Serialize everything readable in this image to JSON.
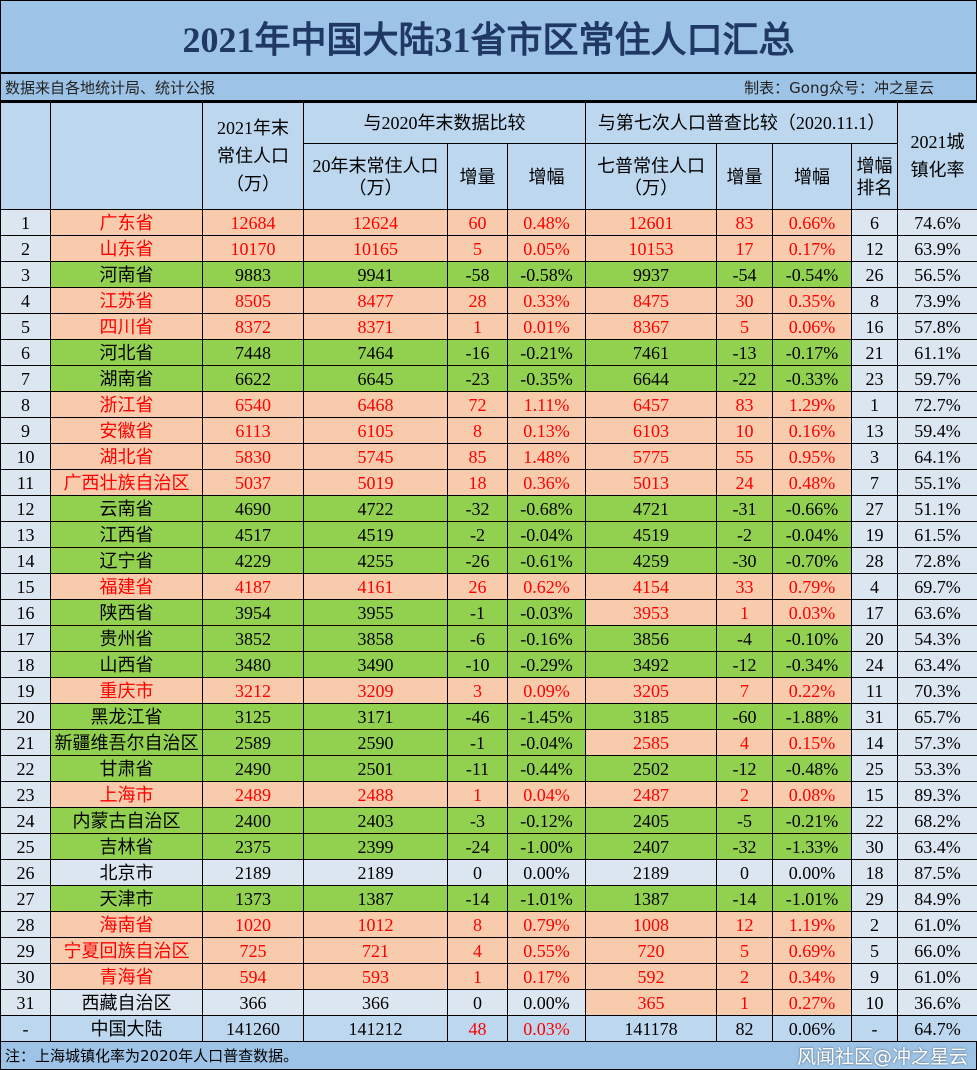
{
  "title": "2021年中国大陆31省市区常住人口汇总",
  "source": "数据来自各地统计局、统计公报",
  "author": "制表：Gong众号：冲之星云",
  "header": {
    "pop2021": "2021年末常住人口（万）",
    "cmp2020": "与2020年末数据比较",
    "pop2020": "20年末常住人口（万）",
    "inc": "增量",
    "pct": "增幅",
    "cmpCensus": "与第七次人口普查比较（2020.11.1）",
    "census": "七普常住人口（万）",
    "inc2": "增量",
    "pct2": "增幅",
    "rank": "增幅排名",
    "urban": "2021城镇化率"
  },
  "colors": {
    "positive_bg": "#f8cbad",
    "positive_text": "#ff0000",
    "negative_bg": "#92d050",
    "neutral_bg": "#dce6f1"
  },
  "rows": [
    [
      "1",
      "广东省",
      "12684",
      "12624",
      "60",
      "0.48%",
      "12601",
      "83",
      "0.66%",
      "6",
      "74.6%",
      "p",
      "p"
    ],
    [
      "2",
      "山东省",
      "10170",
      "10165",
      "5",
      "0.05%",
      "10153",
      "17",
      "0.17%",
      "12",
      "63.9%",
      "p",
      "p"
    ],
    [
      "3",
      "河南省",
      "9883",
      "9941",
      "-58",
      "-0.58%",
      "9937",
      "-54",
      "-0.54%",
      "26",
      "56.5%",
      "n",
      "n"
    ],
    [
      "4",
      "江苏省",
      "8505",
      "8477",
      "28",
      "0.33%",
      "8475",
      "30",
      "0.35%",
      "8",
      "73.9%",
      "p",
      "p"
    ],
    [
      "5",
      "四川省",
      "8372",
      "8371",
      "1",
      "0.01%",
      "8367",
      "5",
      "0.06%",
      "16",
      "57.8%",
      "p",
      "p"
    ],
    [
      "6",
      "河北省",
      "7448",
      "7464",
      "-16",
      "-0.21%",
      "7461",
      "-13",
      "-0.17%",
      "21",
      "61.1%",
      "n",
      "n"
    ],
    [
      "7",
      "湖南省",
      "6622",
      "6645",
      "-23",
      "-0.35%",
      "6644",
      "-22",
      "-0.33%",
      "23",
      "59.7%",
      "n",
      "n"
    ],
    [
      "8",
      "浙江省",
      "6540",
      "6468",
      "72",
      "1.11%",
      "6457",
      "83",
      "1.29%",
      "1",
      "72.7%",
      "p",
      "p"
    ],
    [
      "9",
      "安徽省",
      "6113",
      "6105",
      "8",
      "0.13%",
      "6103",
      "10",
      "0.16%",
      "13",
      "59.4%",
      "p",
      "p"
    ],
    [
      "10",
      "湖北省",
      "5830",
      "5745",
      "85",
      "1.48%",
      "5775",
      "55",
      "0.95%",
      "3",
      "64.1%",
      "p",
      "p"
    ],
    [
      "11",
      "广西壮族自治区",
      "5037",
      "5019",
      "18",
      "0.36%",
      "5013",
      "24",
      "0.48%",
      "7",
      "55.1%",
      "p",
      "p"
    ],
    [
      "12",
      "云南省",
      "4690",
      "4722",
      "-32",
      "-0.68%",
      "4721",
      "-31",
      "-0.66%",
      "27",
      "51.1%",
      "n",
      "n"
    ],
    [
      "13",
      "江西省",
      "4517",
      "4519",
      "-2",
      "-0.04%",
      "4519",
      "-2",
      "-0.04%",
      "19",
      "61.5%",
      "n",
      "n"
    ],
    [
      "14",
      "辽宁省",
      "4229",
      "4255",
      "-26",
      "-0.61%",
      "4259",
      "-30",
      "-0.70%",
      "28",
      "72.8%",
      "n",
      "n"
    ],
    [
      "15",
      "福建省",
      "4187",
      "4161",
      "26",
      "0.62%",
      "4154",
      "33",
      "0.79%",
      "4",
      "69.7%",
      "p",
      "p"
    ],
    [
      "16",
      "陕西省",
      "3954",
      "3955",
      "-1",
      "-0.03%",
      "3953",
      "1",
      "0.03%",
      "17",
      "63.6%",
      "n",
      "p"
    ],
    [
      "17",
      "贵州省",
      "3852",
      "3858",
      "-6",
      "-0.16%",
      "3856",
      "-4",
      "-0.10%",
      "20",
      "54.3%",
      "n",
      "n"
    ],
    [
      "18",
      "山西省",
      "3480",
      "3490",
      "-10",
      "-0.29%",
      "3492",
      "-12",
      "-0.34%",
      "24",
      "63.4%",
      "n",
      "n"
    ],
    [
      "19",
      "重庆市",
      "3212",
      "3209",
      "3",
      "0.09%",
      "3205",
      "7",
      "0.22%",
      "11",
      "70.3%",
      "p",
      "p"
    ],
    [
      "20",
      "黑龙江省",
      "3125",
      "3171",
      "-46",
      "-1.45%",
      "3185",
      "-60",
      "-1.88%",
      "31",
      "65.7%",
      "n",
      "n"
    ],
    [
      "21",
      "新疆维吾尔自治区",
      "2589",
      "2590",
      "-1",
      "-0.04%",
      "2585",
      "4",
      "0.15%",
      "14",
      "57.3%",
      "n",
      "p"
    ],
    [
      "22",
      "甘肃省",
      "2490",
      "2501",
      "-11",
      "-0.44%",
      "2502",
      "-12",
      "-0.48%",
      "25",
      "53.3%",
      "n",
      "n"
    ],
    [
      "23",
      "上海市",
      "2489",
      "2488",
      "1",
      "0.04%",
      "2487",
      "2",
      "0.08%",
      "15",
      "89.3%",
      "p",
      "p"
    ],
    [
      "24",
      "内蒙古自治区",
      "2400",
      "2403",
      "-3",
      "-0.12%",
      "2405",
      "-5",
      "-0.21%",
      "22",
      "68.2%",
      "n",
      "n"
    ],
    [
      "25",
      "吉林省",
      "2375",
      "2399",
      "-24",
      "-1.00%",
      "2407",
      "-32",
      "-1.33%",
      "30",
      "63.4%",
      "n",
      "n"
    ],
    [
      "26",
      "北京市",
      "2189",
      "2189",
      "0",
      "0.00%",
      "2189",
      "0",
      "0.00%",
      "18",
      "87.5%",
      "z",
      "z"
    ],
    [
      "27",
      "天津市",
      "1373",
      "1387",
      "-14",
      "-1.01%",
      "1387",
      "-14",
      "-1.01%",
      "29",
      "84.9%",
      "n",
      "n"
    ],
    [
      "28",
      "海南省",
      "1020",
      "1012",
      "8",
      "0.79%",
      "1008",
      "12",
      "1.19%",
      "2",
      "61.0%",
      "p",
      "p"
    ],
    [
      "29",
      "宁夏回族自治区",
      "725",
      "721",
      "4",
      "0.55%",
      "720",
      "5",
      "0.69%",
      "5",
      "66.0%",
      "p",
      "p"
    ],
    [
      "30",
      "青海省",
      "594",
      "593",
      "1",
      "0.17%",
      "592",
      "2",
      "0.34%",
      "9",
      "61.0%",
      "p",
      "p"
    ],
    [
      "31",
      "西藏自治区",
      "366",
      "366",
      "0",
      "0.00%",
      "365",
      "1",
      "0.27%",
      "10",
      "36.6%",
      "z",
      "p"
    ]
  ],
  "total": [
    "-",
    "中国大陆",
    "141260",
    "141212",
    "48",
    "0.03%",
    "141178",
    "82",
    "0.06%",
    "-",
    "64.7%"
  ],
  "note": "注：上海城镇化率为2020年人口普查数据。",
  "watermark": "风闻社区@冲之星云"
}
